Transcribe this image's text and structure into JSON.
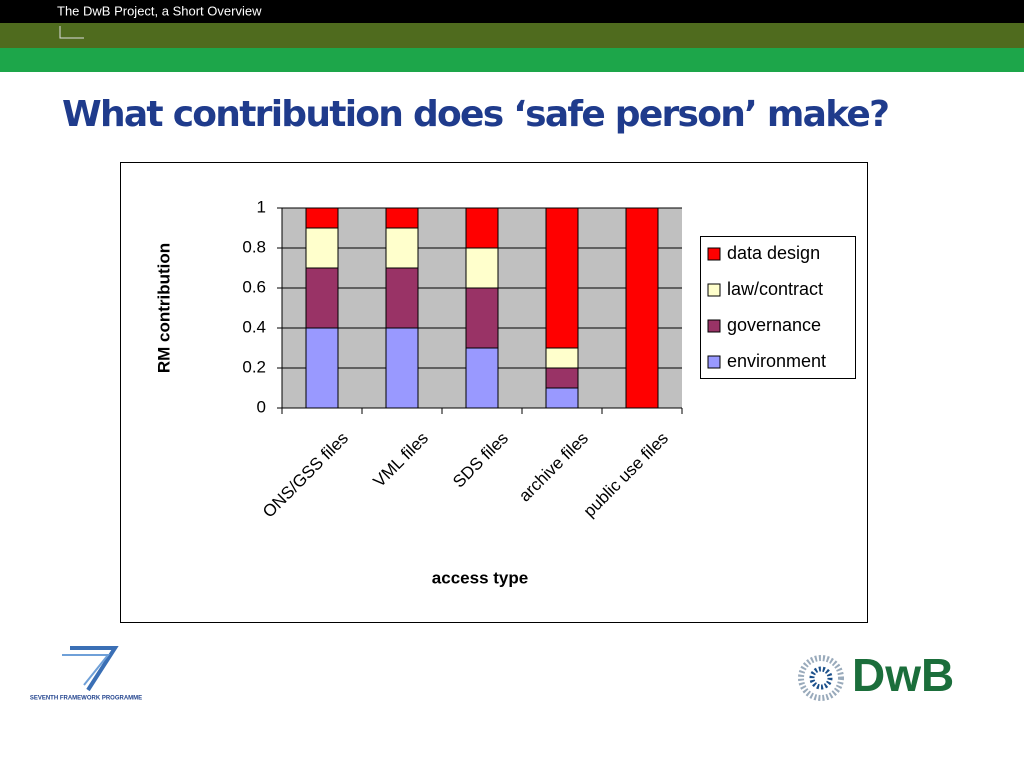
{
  "header": {
    "text": "The DwB Project, a Short Overview"
  },
  "slide_title": "What contribution does ‘safe person’ make?",
  "chart_data": {
    "type": "stacked_bar",
    "categories": [
      "ONS/GSS files",
      "VML files",
      "SDS files",
      "archive files",
      "public use files"
    ],
    "series": [
      {
        "name": "environment",
        "color": "#9999ff",
        "values": [
          0.4,
          0.4,
          0.3,
          0.1,
          0
        ]
      },
      {
        "name": "governance",
        "color": "#993366",
        "values": [
          0.3,
          0.3,
          0.3,
          0.1,
          0
        ]
      },
      {
        "name": "law/contract",
        "color": "#ffffcc",
        "values": [
          0.2,
          0.2,
          0.2,
          0.1,
          0
        ]
      },
      {
        "name": "data design",
        "color": "#ff0000",
        "values": [
          0.1,
          0.1,
          0.2,
          0.7,
          1
        ]
      }
    ],
    "xlabel": "access type",
    "ylabel": "RM contribution",
    "ylim": [
      0,
      1
    ],
    "yticks": [
      0,
      0.2,
      0.4,
      0.6,
      0.8,
      1
    ],
    "grid": true,
    "plot_background": "#c0c0c0",
    "legend": "right"
  },
  "logos": {
    "fp7": "SEVENTH FRAMEWORK PROGRAMME",
    "dwb": "DwB"
  }
}
